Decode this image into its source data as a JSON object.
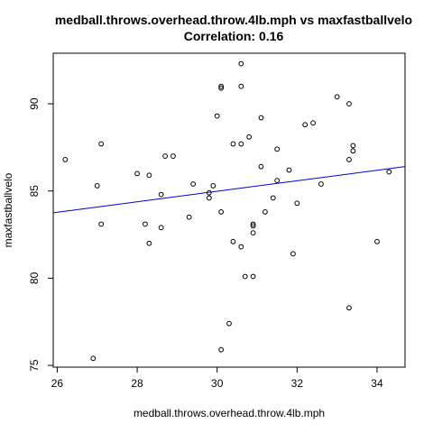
{
  "chart_data": {
    "type": "scatter",
    "title": "medball.throws.overhead.throw.4lb.mph vs maxfastballvelo",
    "subtitle": "Correlation: 0.16",
    "xlabel": "medball.throws.overhead.throw.4lb.mph",
    "ylabel": "maxfastballvelo",
    "xlim": [
      25.9,
      34.7
    ],
    "ylim": [
      74.9,
      92.9
    ],
    "xticks": [
      26,
      28,
      30,
      32,
      34
    ],
    "yticks": [
      75,
      80,
      85,
      90
    ],
    "grid": false,
    "point_color": "#000000",
    "line_color": "#0000cc",
    "points": [
      {
        "x": 26.2,
        "y": 86.8
      },
      {
        "x": 26.9,
        "y": 75.4
      },
      {
        "x": 27.0,
        "y": 85.3
      },
      {
        "x": 27.1,
        "y": 87.7
      },
      {
        "x": 27.1,
        "y": 83.1
      },
      {
        "x": 28.0,
        "y": 86.0
      },
      {
        "x": 28.2,
        "y": 83.1
      },
      {
        "x": 28.3,
        "y": 85.9
      },
      {
        "x": 28.3,
        "y": 82.0
      },
      {
        "x": 28.6,
        "y": 84.8
      },
      {
        "x": 28.6,
        "y": 82.9
      },
      {
        "x": 28.7,
        "y": 87.0
      },
      {
        "x": 28.9,
        "y": 87.0
      },
      {
        "x": 29.3,
        "y": 83.5
      },
      {
        "x": 29.4,
        "y": 85.4
      },
      {
        "x": 29.8,
        "y": 84.6
      },
      {
        "x": 29.8,
        "y": 84.9
      },
      {
        "x": 29.9,
        "y": 85.3
      },
      {
        "x": 30.0,
        "y": 89.3
      },
      {
        "x": 30.1,
        "y": 91.0
      },
      {
        "x": 30.1,
        "y": 90.9
      },
      {
        "x": 30.1,
        "y": 83.8
      },
      {
        "x": 30.1,
        "y": 75.9
      },
      {
        "x": 30.3,
        "y": 77.4
      },
      {
        "x": 30.4,
        "y": 87.7
      },
      {
        "x": 30.4,
        "y": 82.1
      },
      {
        "x": 30.6,
        "y": 92.3
      },
      {
        "x": 30.6,
        "y": 91.0
      },
      {
        "x": 30.6,
        "y": 87.7
      },
      {
        "x": 30.6,
        "y": 81.8
      },
      {
        "x": 30.7,
        "y": 80.1
      },
      {
        "x": 30.8,
        "y": 88.1
      },
      {
        "x": 30.9,
        "y": 83.0
      },
      {
        "x": 30.9,
        "y": 83.1
      },
      {
        "x": 30.9,
        "y": 82.6
      },
      {
        "x": 30.9,
        "y": 80.1
      },
      {
        "x": 31.1,
        "y": 89.2
      },
      {
        "x": 31.1,
        "y": 86.4
      },
      {
        "x": 31.2,
        "y": 83.8
      },
      {
        "x": 31.4,
        "y": 84.6
      },
      {
        "x": 31.5,
        "y": 87.4
      },
      {
        "x": 31.5,
        "y": 85.6
      },
      {
        "x": 31.8,
        "y": 86.2
      },
      {
        "x": 31.9,
        "y": 81.4
      },
      {
        "x": 32.0,
        "y": 84.3
      },
      {
        "x": 32.2,
        "y": 88.8
      },
      {
        "x": 32.4,
        "y": 88.9
      },
      {
        "x": 32.6,
        "y": 85.4
      },
      {
        "x": 33.0,
        "y": 90.4
      },
      {
        "x": 33.3,
        "y": 90.0
      },
      {
        "x": 33.3,
        "y": 86.8
      },
      {
        "x": 33.3,
        "y": 78.3
      },
      {
        "x": 33.4,
        "y": 87.6
      },
      {
        "x": 33.4,
        "y": 87.3
      },
      {
        "x": 34.0,
        "y": 82.1
      },
      {
        "x": 34.3,
        "y": 86.1
      }
    ],
    "regression_line": {
      "x": [
        25.9,
        34.7
      ],
      "y": [
        83.75,
        86.4
      ]
    }
  }
}
